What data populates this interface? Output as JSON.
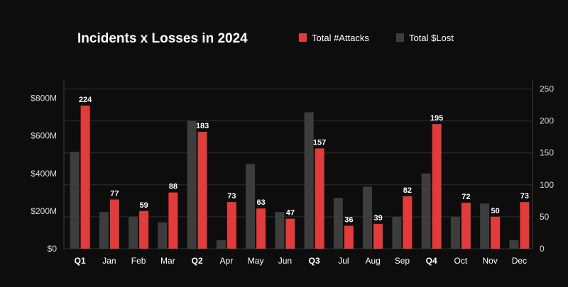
{
  "chart_data": {
    "type": "bar",
    "title": "Incidents x Losses in 2024",
    "xlabel": "",
    "ylabel_left": "",
    "ylabel_right": "",
    "categories": [
      "Q1",
      "Jan",
      "Feb",
      "Mar",
      "Q2",
      "Apr",
      "May",
      "Jun",
      "Q3",
      "Jul",
      "Aug",
      "Sep",
      "Q4",
      "Oct",
      "Nov",
      "Dec"
    ],
    "left_axis": {
      "ylim": [
        0,
        900
      ],
      "ticks": [
        0,
        200,
        400,
        600,
        800
      ],
      "tick_labels": [
        "$0",
        "$200M",
        "$400M",
        "$600M",
        "$800M"
      ]
    },
    "right_axis": {
      "ylim": [
        0,
        265
      ],
      "ticks": [
        0,
        50,
        100,
        150,
        200,
        250
      ],
      "tick_labels": [
        "0",
        "50",
        "100",
        "150",
        "200",
        "250"
      ]
    },
    "series": [
      {
        "name": "Total $Lost",
        "axis": "left",
        "color": "#3d3d3d",
        "values": [
          515,
          195,
          170,
          140,
          680,
          45,
          450,
          195,
          725,
          270,
          330,
          170,
          400,
          170,
          240,
          45
        ]
      },
      {
        "name": "Total #Attacks",
        "axis": "right",
        "color": "#e03c3c",
        "values": [
          224,
          77,
          59,
          88,
          183,
          73,
          63,
          47,
          157,
          36,
          39,
          82,
          195,
          72,
          50,
          73
        ],
        "data_labels": [
          "224",
          "77",
          "59",
          "88",
          "183",
          "73",
          "63",
          "47",
          "157",
          "36",
          "39",
          "82",
          "195",
          "72",
          "50",
          "73"
        ]
      }
    ],
    "legend": {
      "placement": "top-right",
      "order": [
        "Total #Attacks",
        "Total $Lost"
      ]
    },
    "grid": true,
    "colors": {
      "background": "#0d0d0d",
      "grid": "#2e2e2e",
      "text": "#ffffff",
      "tick_text": "#d9d9d9"
    }
  }
}
